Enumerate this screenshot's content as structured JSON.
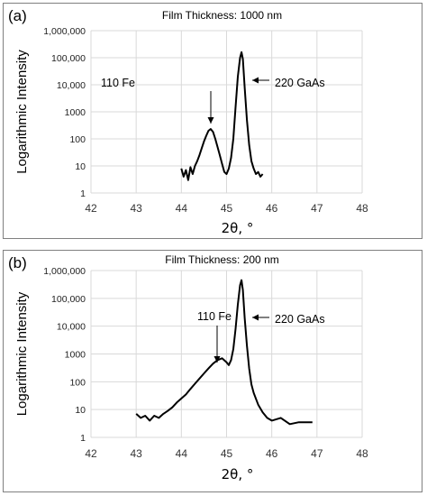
{
  "chart_data": [
    {
      "panel_label": "(a)",
      "type": "line",
      "title": "Film Thickness: 1000 nm",
      "xlabel": "2θ, °",
      "ylabel": "Logarithmic Intensity",
      "xlim": [
        42,
        48
      ],
      "ylim": [
        1,
        1000000
      ],
      "yscale": "log",
      "grid": true,
      "x_ticks": [
        "42",
        "43",
        "44",
        "45",
        "46",
        "47",
        "48"
      ],
      "y_ticks": [
        "1",
        "10",
        "100",
        "1000",
        "10,000",
        "100,000",
        "1,000,000"
      ],
      "series": [
        {
          "x": [
            44.0,
            44.05,
            44.1,
            44.15,
            44.2,
            44.25,
            44.3,
            44.35,
            44.4,
            44.45,
            44.5,
            44.55,
            44.6,
            44.65,
            44.7,
            44.75,
            44.8,
            44.85,
            44.9,
            44.95,
            45.0,
            45.05,
            45.1,
            45.15,
            45.2,
            45.25,
            45.3,
            45.33,
            45.36,
            45.4,
            45.45,
            45.5,
            45.55,
            45.6,
            45.65,
            45.7,
            45.75,
            45.8
          ],
          "y": [
            8,
            4,
            7,
            3,
            9,
            5,
            10,
            15,
            25,
            45,
            80,
            130,
            200,
            230,
            180,
            100,
            50,
            25,
            12,
            6,
            5,
            8,
            20,
            100,
            1500,
            20000,
            100000,
            160000,
            90000,
            8000,
            500,
            60,
            15,
            8,
            5,
            6,
            4,
            5
          ]
        }
      ],
      "annotations": [
        {
          "text": "110 Fe",
          "x": 44.7,
          "y": 230
        },
        {
          "text": "220 GaAs",
          "x": 45.35,
          "y": 20000
        }
      ]
    },
    {
      "panel_label": "(b)",
      "type": "line",
      "title": "Film Thickness: 200 nm",
      "xlabel": "2θ, °",
      "ylabel": "Logarithmic Intensity",
      "xlim": [
        42,
        48
      ],
      "ylim": [
        1,
        1000000
      ],
      "yscale": "log",
      "grid": true,
      "x_ticks": [
        "42",
        "43",
        "44",
        "45",
        "46",
        "47",
        "48"
      ],
      "y_ticks": [
        "1",
        "10",
        "100",
        "1000",
        "10,000",
        "100,000",
        "1,000,000"
      ],
      "series": [
        {
          "x": [
            43.0,
            43.1,
            43.2,
            43.3,
            43.4,
            43.5,
            43.6,
            43.7,
            43.8,
            43.9,
            44.0,
            44.1,
            44.2,
            44.3,
            44.4,
            44.5,
            44.6,
            44.7,
            44.8,
            44.9,
            45.0,
            45.05,
            45.1,
            45.15,
            45.2,
            45.25,
            45.3,
            45.33,
            45.36,
            45.4,
            45.45,
            45.5,
            45.55,
            45.6,
            45.7,
            45.8,
            45.9,
            46.0,
            46.2,
            46.4,
            46.6,
            46.9
          ],
          "y": [
            7,
            5,
            6,
            4,
            6,
            5,
            7,
            9,
            12,
            18,
            25,
            35,
            55,
            85,
            130,
            200,
            300,
            450,
            600,
            700,
            500,
            400,
            600,
            1500,
            8000,
            60000,
            300000,
            450000,
            200000,
            20000,
            2000,
            300,
            80,
            40,
            15,
            8,
            5,
            4,
            5,
            3,
            3.5,
            3.5
          ]
        }
      ],
      "annotations": [
        {
          "text": "110 Fe",
          "x": 44.9,
          "y": 600
        },
        {
          "text": "220 GaAs",
          "x": 45.35,
          "y": 20000
        }
      ]
    }
  ]
}
